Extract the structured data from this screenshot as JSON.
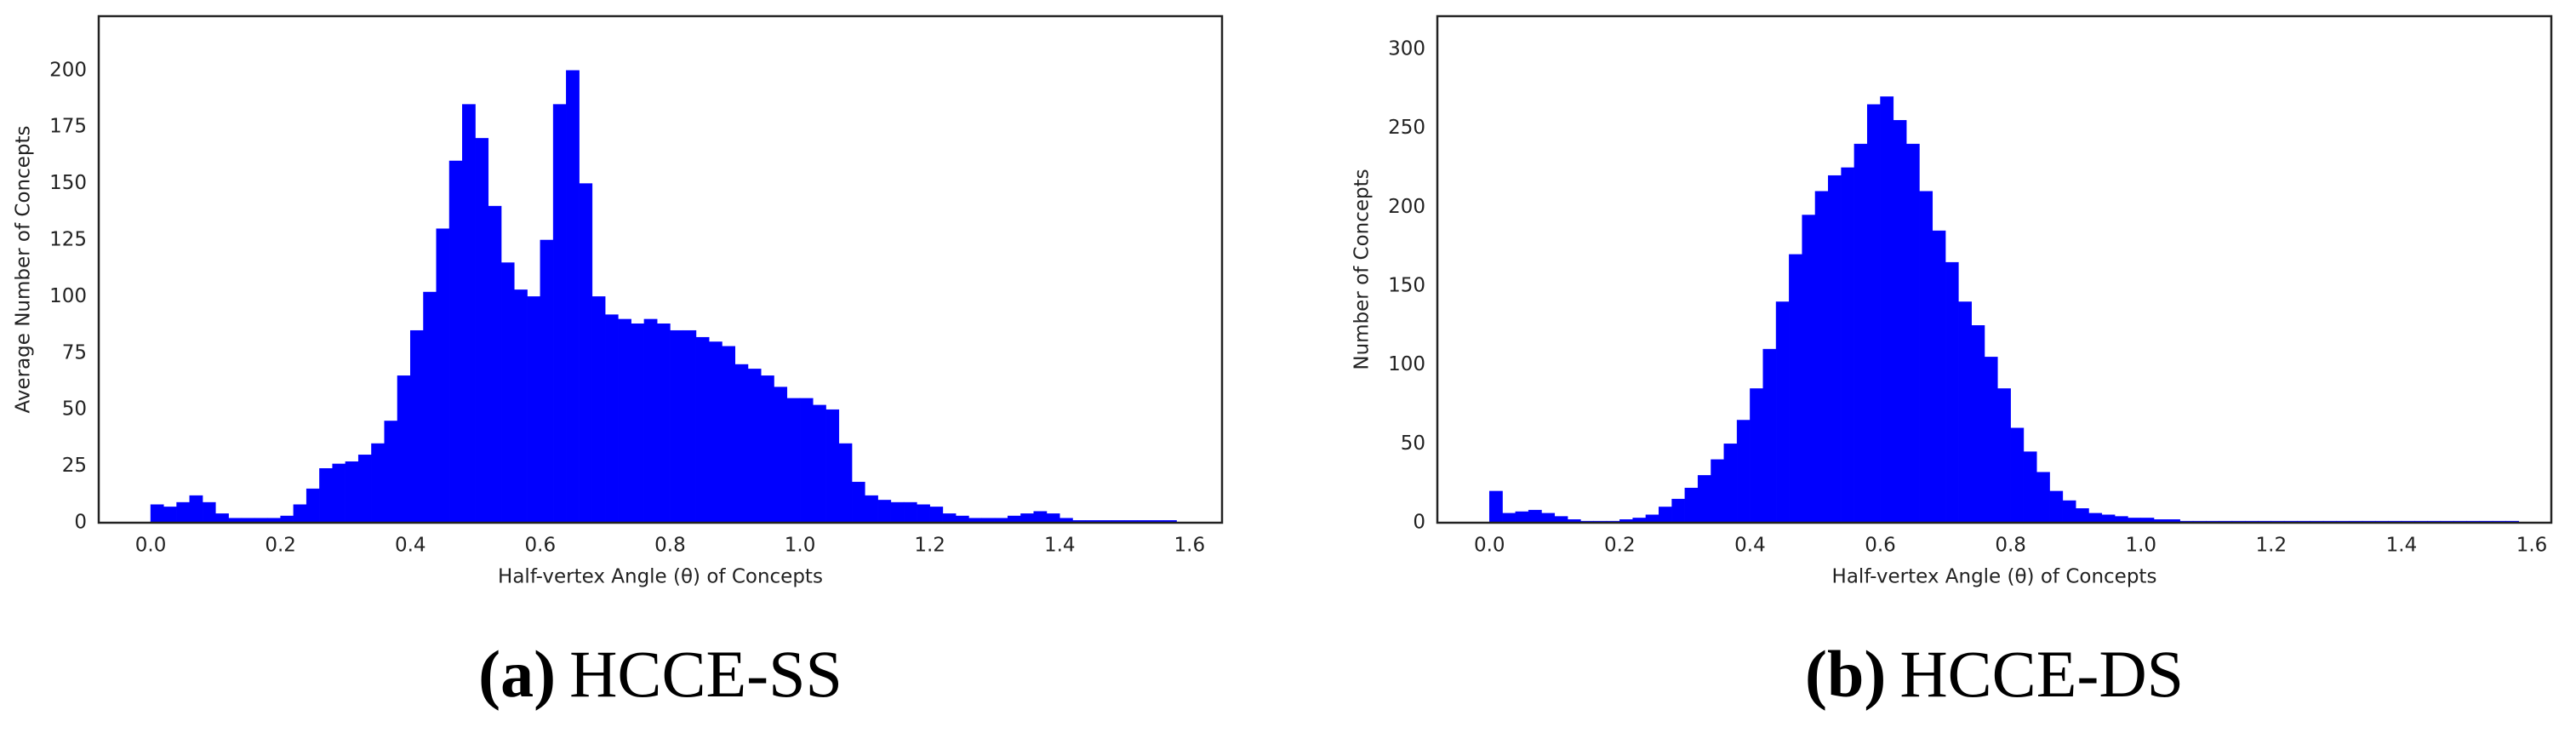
{
  "chart_data": [
    {
      "type": "histogram",
      "xlabel": "Half-vertex Angle (θ) of Concepts",
      "ylabel": "Average Number of Concepts",
      "caption_label": "(a)",
      "caption_text": "HCCE-SS",
      "color": "#0000ff",
      "xlim": [
        -0.08,
        1.65
      ],
      "ylim": [
        0,
        224
      ],
      "xticks": [
        {
          "value": 0,
          "label": "0.0"
        },
        {
          "value": 0.2,
          "label": "0.2"
        },
        {
          "value": 0.4,
          "label": "0.4"
        },
        {
          "value": 0.6,
          "label": "0.6"
        },
        {
          "value": 0.8,
          "label": "0.8"
        },
        {
          "value": 1,
          "label": "1.0"
        },
        {
          "value": 1.2,
          "label": "1.2"
        },
        {
          "value": 1.4,
          "label": "1.4"
        },
        {
          "value": 1.6,
          "label": "1.6"
        }
      ],
      "yticks": [
        0,
        25,
        50,
        75,
        100,
        125,
        150,
        175,
        200
      ],
      "bins": [
        0,
        0.02,
        0.04,
        0.06,
        0.08,
        0.1,
        0.12,
        0.14,
        0.16,
        0.18,
        0.2,
        0.22,
        0.24,
        0.26,
        0.28,
        0.3,
        0.32,
        0.34,
        0.36,
        0.38,
        0.4,
        0.42,
        0.44,
        0.46,
        0.48,
        0.5,
        0.52,
        0.54,
        0.56,
        0.58,
        0.6,
        0.62,
        0.64,
        0.66,
        0.68,
        0.7,
        0.72,
        0.74,
        0.76,
        0.78,
        0.8,
        0.82,
        0.84,
        0.86,
        0.88,
        0.9,
        0.92,
        0.94,
        0.96,
        0.98,
        1,
        1.02,
        1.04,
        1.06,
        1.08,
        1.1,
        1.12,
        1.14,
        1.16,
        1.18,
        1.2,
        1.22,
        1.24,
        1.26,
        1.28,
        1.3,
        1.32,
        1.34,
        1.36,
        1.38,
        1.4,
        1.42,
        1.44,
        1.46,
        1.48,
        1.5,
        1.52,
        1.54,
        1.56,
        1.58,
        1.6
      ],
      "counts": [
        8,
        7,
        9,
        12,
        9,
        4,
        2,
        2,
        2,
        2,
        3,
        8,
        15,
        24,
        26,
        27,
        30,
        35,
        45,
        65,
        85,
        102,
        130,
        160,
        185,
        170,
        140,
        115,
        103,
        100,
        125,
        185,
        200,
        150,
        100,
        92,
        90,
        88,
        90,
        88,
        85,
        85,
        82,
        80,
        78,
        70,
        68,
        65,
        60,
        55,
        55,
        52,
        50,
        35,
        18,
        12,
        10,
        9,
        9,
        8,
        7,
        4,
        3,
        2,
        2,
        2,
        3,
        4,
        5,
        4,
        2,
        1,
        1,
        1,
        1,
        1,
        1,
        1,
        1,
        0
      ]
    },
    {
      "type": "histogram",
      "xlabel": "Half-vertex Angle (θ) of Concepts",
      "ylabel": "Number of Concepts",
      "caption_label": "(b)",
      "caption_text": "HCCE-DS",
      "color": "#0000ff",
      "xlim": [
        -0.08,
        1.63
      ],
      "ylim": [
        0,
        321
      ],
      "xticks": [
        {
          "value": 0,
          "label": "0.0"
        },
        {
          "value": 0.2,
          "label": "0.2"
        },
        {
          "value": 0.4,
          "label": "0.4"
        },
        {
          "value": 0.6,
          "label": "0.6"
        },
        {
          "value": 0.8,
          "label": "0.8"
        },
        {
          "value": 1,
          "label": "1.0"
        },
        {
          "value": 1.2,
          "label": "1.2"
        },
        {
          "value": 1.4,
          "label": "1.4"
        },
        {
          "value": 1.6,
          "label": "1.6"
        }
      ],
      "yticks": [
        0,
        50,
        100,
        150,
        200,
        250,
        300
      ],
      "bins": [
        0,
        0.02,
        0.04,
        0.06,
        0.08,
        0.1,
        0.12,
        0.14,
        0.16,
        0.18,
        0.2,
        0.22,
        0.24,
        0.26,
        0.28,
        0.3,
        0.32,
        0.34,
        0.36,
        0.38,
        0.4,
        0.42,
        0.44,
        0.46,
        0.48,
        0.5,
        0.52,
        0.54,
        0.56,
        0.58,
        0.6,
        0.62,
        0.64,
        0.66,
        0.68,
        0.7,
        0.72,
        0.74,
        0.76,
        0.78,
        0.8,
        0.82,
        0.84,
        0.86,
        0.88,
        0.9,
        0.92,
        0.94,
        0.96,
        0.98,
        1,
        1.02,
        1.04,
        1.06,
        1.08,
        1.1,
        1.12,
        1.14,
        1.16,
        1.18,
        1.2,
        1.22,
        1.24,
        1.26,
        1.28,
        1.3,
        1.32,
        1.34,
        1.36,
        1.38,
        1.4,
        1.42,
        1.44,
        1.46,
        1.48,
        1.5,
        1.52,
        1.54,
        1.56,
        1.58,
        1.6
      ],
      "counts": [
        20,
        6,
        7,
        8,
        6,
        4,
        2,
        1,
        1,
        1,
        2,
        3,
        5,
        10,
        15,
        22,
        30,
        40,
        50,
        65,
        85,
        110,
        140,
        170,
        195,
        210,
        220,
        225,
        240,
        265,
        270,
        255,
        240,
        210,
        185,
        165,
        140,
        125,
        105,
        85,
        60,
        45,
        32,
        20,
        14,
        9,
        6,
        5,
        4,
        3,
        3,
        2,
        2,
        1,
        1,
        1,
        1,
        1,
        1,
        1,
        1,
        1,
        1,
        1,
        1,
        1,
        1,
        1,
        1,
        1,
        1,
        1,
        1,
        1,
        1,
        1,
        1,
        1,
        1,
        0
      ]
    }
  ]
}
